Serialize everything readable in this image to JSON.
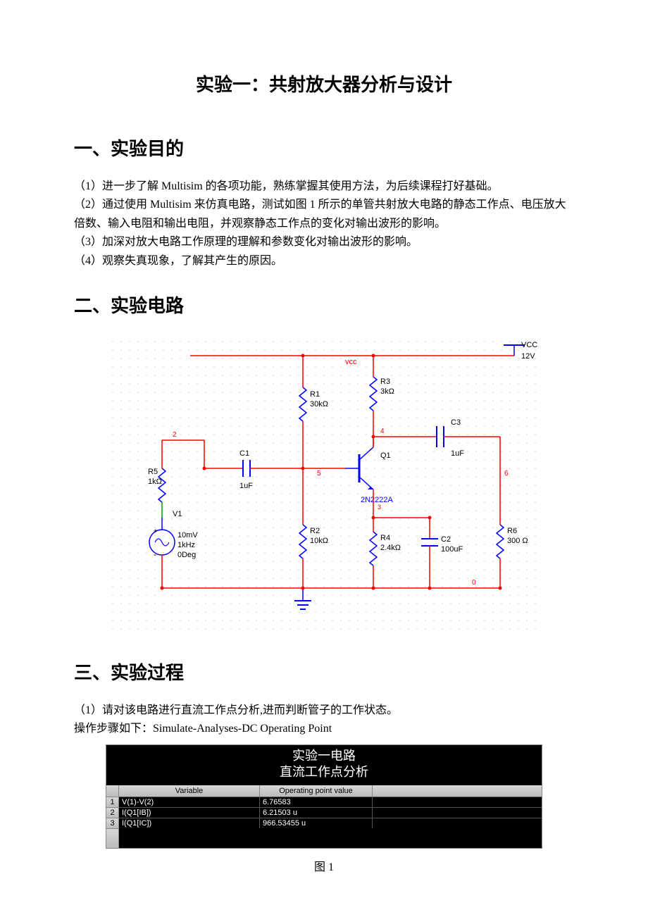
{
  "title": "实验一：共射放大器分析与设计",
  "section1": {
    "heading": "一、实验目的",
    "items": [
      "（1）进一步了解 Multisim 的各项功能，熟练掌握其使用方法，为后续课程打好基础。",
      "（2）通过使用 Multisim 来仿真电路，测试如图 1 所示的单管共射放大电路的静态工作点、电压放大倍数、输入电阻和输出电阻，并观察静态工作点的变化对输出波形的影响。",
      "（3）加深对放大电路工作原理的理解和参数变化对输出波形的影响。",
      "（4）观察失真现象，了解其产生的原因。"
    ]
  },
  "section2": {
    "heading": "二、实验电路"
  },
  "section3": {
    "heading": "三、实验过程",
    "line1": "（1）请对该电路进行直流工作点分析,进而判断管子的工作状态。",
    "line2": "操作步骤如下：Simulate-Analyses-DC Operating Point"
  },
  "circuit": {
    "grid_color": "#b0b0b0",
    "wire_red": "#ff0000",
    "wire_blue": "#0000ff",
    "wire_green": "#00a000",
    "text_color": "#000000",
    "components": {
      "vcc_label": "VCC",
      "vcc_value": "12V",
      "vcc_net": "vcc",
      "R1": {
        "name": "R1",
        "value": "30kΩ"
      },
      "R2": {
        "name": "R2",
        "value": "10kΩ"
      },
      "R3": {
        "name": "R3",
        "value": "3kΩ"
      },
      "R4": {
        "name": "R4",
        "value": "2.4kΩ"
      },
      "R5": {
        "name": "R5",
        "value": "1kΩ"
      },
      "R6": {
        "name": "R6",
        "value": "300 Ω"
      },
      "C1": {
        "name": "C1",
        "value": "1uF"
      },
      "C2": {
        "name": "C2",
        "value": "100uF"
      },
      "C3": {
        "name": "C3",
        "value": "1uF"
      },
      "Q1": {
        "name": "Q1",
        "model": "2N2222A"
      },
      "V1": {
        "name": "V1",
        "amp": "10mV",
        "freq": "1kHz",
        "phase": "0Deg"
      }
    },
    "nodes": {
      "n2": "2",
      "n4": "4",
      "n5": "5",
      "n3": "3",
      "n6": "6",
      "n0": "0"
    }
  },
  "dc_table": {
    "title_line1": "实验一电路",
    "title_line2": "直流工作点分析",
    "header_variable": "Variable",
    "header_value": "Operating point value",
    "rows": [
      {
        "idx": "1",
        "var": "V(1)-V(2)",
        "val": "6.76583"
      },
      {
        "idx": "2",
        "var": "I(Q1[IB])",
        "val": "6.21503 u"
      },
      {
        "idx": "3",
        "var": "I(Q1[IC])",
        "val": "966.53455 u"
      }
    ]
  },
  "fig_caption": "图 1"
}
